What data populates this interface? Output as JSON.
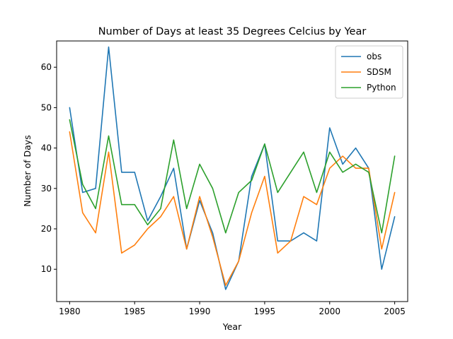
{
  "chart_data": {
    "type": "line",
    "title": "Number of Days at least 35 Degrees Celcius by Year",
    "xlabel": "Year",
    "ylabel": "Number of Days",
    "xlim": [
      1979,
      2006
    ],
    "ylim": [
      2,
      66.5
    ],
    "xticks": [
      1980,
      1985,
      1990,
      1995,
      2000,
      2005
    ],
    "yticks": [
      10,
      20,
      30,
      40,
      50,
      60
    ],
    "legend_position": "top-right",
    "grid": false,
    "x": [
      1980,
      1981,
      1982,
      1983,
      1984,
      1985,
      1986,
      1987,
      1988,
      1989,
      1990,
      1991,
      1992,
      1993,
      1994,
      1995,
      1996,
      1997,
      1998,
      1999,
      2000,
      2001,
      2002,
      2003,
      2004,
      2005
    ],
    "series": [
      {
        "name": "obs",
        "color": "#1f77b4",
        "values": [
          50,
          29,
          30,
          65,
          34,
          34,
          22,
          28,
          35,
          15,
          27,
          19,
          5,
          12,
          33,
          41,
          17,
          17,
          19,
          17,
          45,
          36,
          40,
          35,
          10,
          23
        ]
      },
      {
        "name": "SDSM",
        "color": "#ff7f0e",
        "values": [
          44,
          24,
          19,
          39,
          14,
          16,
          20,
          23,
          28,
          15,
          28,
          18,
          6,
          12,
          24,
          33,
          14,
          17,
          28,
          26,
          35,
          38,
          35,
          35,
          15,
          29
        ]
      },
      {
        "name": "Python",
        "color": "#2ca02c",
        "values": [
          47,
          31,
          25,
          43,
          26,
          26,
          21,
          25,
          42,
          25,
          36,
          30,
          19,
          29,
          32,
          41,
          29,
          34,
          39,
          29,
          39,
          34,
          36,
          34,
          19,
          38
        ]
      }
    ]
  }
}
